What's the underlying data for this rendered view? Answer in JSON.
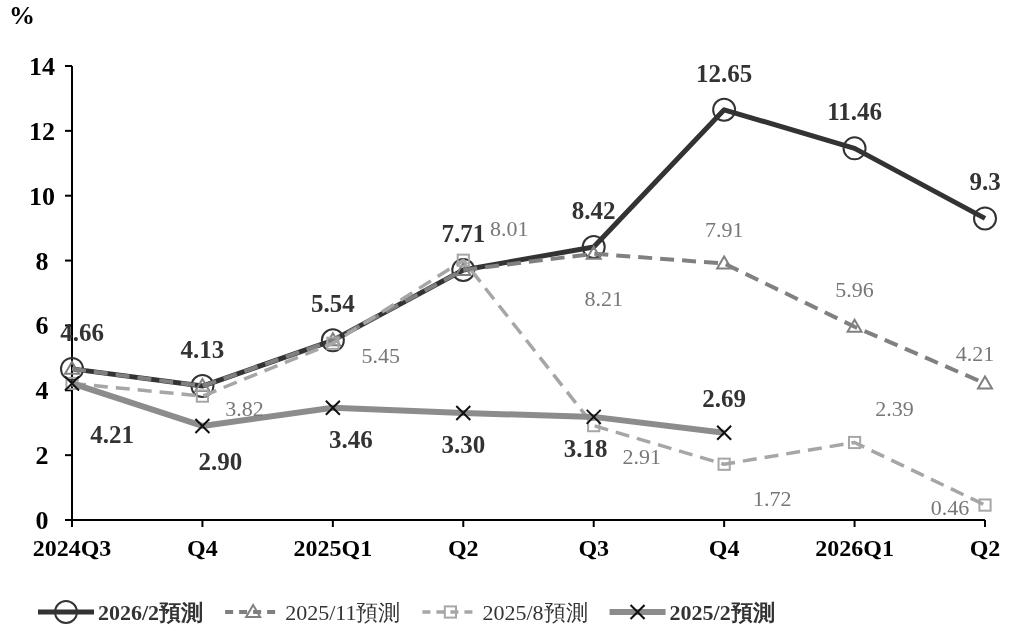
{
  "chart_data": {
    "type": "line",
    "ylabel": "%",
    "categories": [
      "2024Q3",
      "Q4",
      "2025Q1",
      "Q2",
      "Q3",
      "Q4",
      "2026Q1",
      "Q2"
    ],
    "ylim": [
      0,
      14
    ],
    "yticks": [
      0,
      2,
      4,
      6,
      8,
      10,
      12,
      14
    ],
    "grid": false,
    "legend": "bottom",
    "series": [
      {
        "name": "2026/2預測",
        "color": "#333333",
        "marker": "circle",
        "line_style": "solid",
        "values": [
          4.66,
          4.13,
          5.54,
          7.71,
          8.42,
          12.65,
          11.46,
          9.3
        ],
        "value_labels": [
          "4.66",
          "4.13",
          "5.54",
          "7.71",
          "8.42",
          "12.65",
          "11.46",
          "9.3"
        ]
      },
      {
        "name": "2025/11預測",
        "color": "#808080",
        "marker": "triangle",
        "line_style": "dashed",
        "values": [
          4.66,
          4.13,
          5.54,
          7.71,
          8.21,
          7.91,
          5.96,
          4.21
        ],
        "value_labels": [
          null,
          null,
          null,
          null,
          "8.21",
          "7.91",
          "5.96",
          "4.21"
        ]
      },
      {
        "name": "2025/8預測",
        "color": "#a6a6a6",
        "marker": "square",
        "line_style": "dashed",
        "values": [
          4.21,
          3.82,
          5.45,
          8.01,
          2.91,
          1.72,
          2.39,
          0.46
        ],
        "value_labels": [
          null,
          "3.82",
          "5.45",
          "8.01",
          "2.91",
          "1.72",
          "2.39",
          "0.46"
        ]
      },
      {
        "name": "2025/2預測",
        "color": "#8c8c8c",
        "marker": "cross",
        "line_style": "solid",
        "values": [
          4.21,
          2.9,
          3.46,
          3.3,
          3.18,
          2.69,
          null,
          null
        ],
        "value_labels": [
          "4.21",
          "2.90",
          "3.46",
          "3.30",
          "3.18",
          "2.69",
          null,
          null
        ]
      }
    ]
  }
}
